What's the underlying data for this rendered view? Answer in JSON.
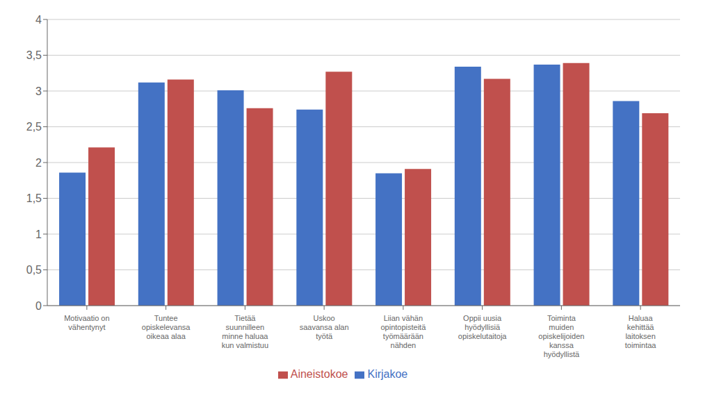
{
  "chart_data": {
    "type": "bar",
    "categories": [
      "Motivaatio on\nvähentynyt",
      "Tuntee\nopiskelevansa\noikeaa alaa",
      "Tietää\nsuunnilleen\nminne haluaa\nkun valmistuu",
      "Uskoo\nsaavansa alan\ntyötä",
      "Liian vähän\nopintopisteitä\ntyömäärään\nnähden",
      "Oppii uusia\nhyödyllisiä\nopiskelutaitoja",
      "Toiminta\nmuiden\nopiskelijoiden\nkanssa\nhyödyllistä",
      "Haluaa\nkehittää\nlaitoksen\ntoimintaa"
    ],
    "series": [
      {
        "name": "Kirjakoe",
        "color": "#4472C4",
        "values": [
          1.86,
          3.12,
          3.01,
          2.74,
          1.85,
          3.34,
          3.37,
          2.86
        ]
      },
      {
        "name": "Aineistokoe",
        "color": "#C0504D",
        "values": [
          2.21,
          3.16,
          2.76,
          3.27,
          1.91,
          3.17,
          3.39,
          2.69
        ]
      }
    ],
    "ylim": [
      0,
      4
    ],
    "yticks": [
      0,
      {
        "value": 0.5,
        "label": "0,5"
      },
      1,
      {
        "value": 1.5,
        "label": "1,5"
      },
      2,
      {
        "value": 2.5,
        "label": "2,5"
      },
      3,
      {
        "value": 3.5,
        "label": "3,5"
      },
      4
    ],
    "grid": true,
    "legend": "bottom"
  }
}
